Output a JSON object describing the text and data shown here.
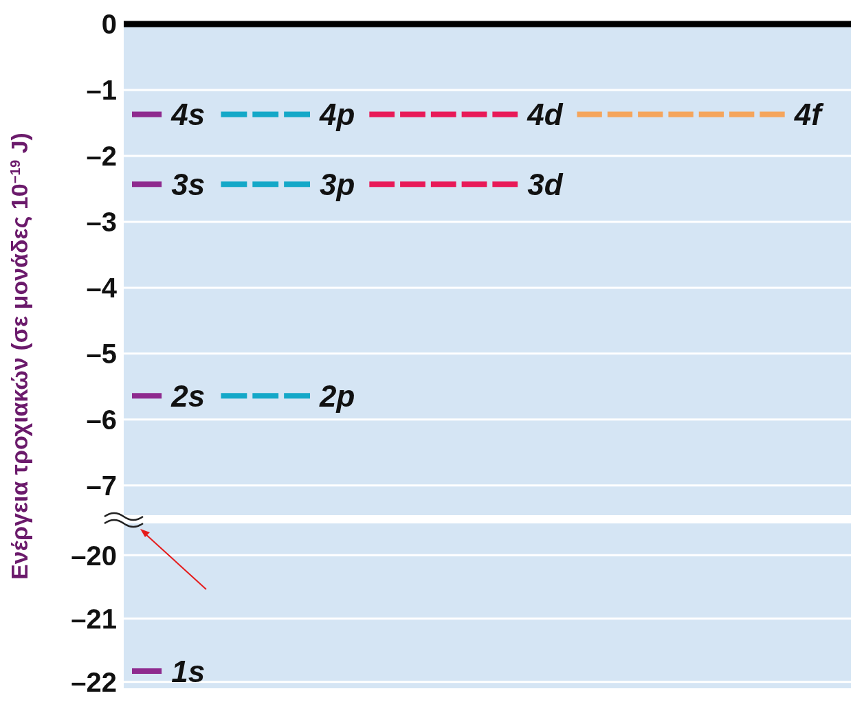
{
  "chart_data": [
    {
      "type": "line",
      "ylabel": "Ενέργεια τροχιακών (σε μονάδες 10$^{−19}$ J)",
      "categories": [
        null,
        null,
        null,
        null,
        null,
        null,
        null,
        null,
        null,
        null,
        null,
        null,
        null,
        null,
        null,
        null,
        null,
        null,
        null,
        null,
        null,
        null,
        null,
        null,
        null
      ],
      "ylim": [
        -7.45,
        0
      ],
      "yticks": [
        0,
        {
          "value": -1,
          "label": "–1"
        },
        {
          "value": -2,
          "label": "–2"
        },
        {
          "value": -3,
          "label": "–3"
        },
        {
          "value": -4,
          "label": "–4"
        },
        {
          "value": -5,
          "label": "–5"
        },
        {
          "value": -6,
          "label": "–6"
        },
        {
          "value": -7,
          "label": "–7"
        }
      ],
      "grid": "y",
      "tick_labels": "y",
      "line_style": "dashed",
      "ref_lines": [
        {
          "axis": "y",
          "value": 0,
          "color": "#000000"
        }
      ],
      "series": [
        {
          "name": "4s",
          "color": "#8e2a8e",
          "values": [
            -1.37,
            -1.37,
            null,
            null,
            null,
            null,
            null,
            null,
            null,
            null,
            null,
            null,
            null,
            null,
            null,
            null,
            null,
            null,
            null,
            null,
            null,
            null,
            null,
            null,
            null
          ]
        },
        {
          "name": "4p",
          "color": "#14a8c8",
          "values": [
            null,
            null,
            null,
            -1.37,
            -1.37,
            -1.37,
            -1.37,
            null,
            null,
            null,
            null,
            null,
            null,
            null,
            null,
            null,
            null,
            null,
            null,
            null,
            null,
            null,
            null,
            null,
            null
          ]
        },
        {
          "name": "4d",
          "color": "#e81a58",
          "values": [
            null,
            null,
            null,
            null,
            null,
            null,
            null,
            null,
            -1.37,
            -1.37,
            -1.37,
            -1.37,
            -1.37,
            -1.37,
            null,
            null,
            null,
            null,
            null,
            null,
            null,
            null,
            null,
            null,
            null
          ]
        },
        {
          "name": "4f",
          "color": "#f5a55c",
          "values": [
            null,
            null,
            null,
            null,
            null,
            null,
            null,
            null,
            null,
            null,
            null,
            null,
            null,
            null,
            null,
            -1.37,
            -1.37,
            -1.37,
            -1.37,
            -1.37,
            -1.37,
            -1.37,
            -1.37,
            null,
            null
          ]
        },
        {
          "name": "3s",
          "color": "#8e2a8e",
          "values": [
            -2.43,
            -2.43,
            null,
            null,
            null,
            null,
            null,
            null,
            null,
            null,
            null,
            null,
            null,
            null,
            null,
            null,
            null,
            null,
            null,
            null,
            null,
            null,
            null,
            null,
            null
          ]
        },
        {
          "name": "3p",
          "color": "#14a8c8",
          "values": [
            null,
            null,
            null,
            -2.43,
            -2.43,
            -2.43,
            -2.43,
            null,
            null,
            null,
            null,
            null,
            null,
            null,
            null,
            null,
            null,
            null,
            null,
            null,
            null,
            null,
            null,
            null,
            null
          ]
        },
        {
          "name": "3d",
          "color": "#e81a58",
          "values": [
            null,
            null,
            null,
            null,
            null,
            null,
            null,
            null,
            -2.43,
            -2.43,
            -2.43,
            -2.43,
            -2.43,
            -2.43,
            null,
            null,
            null,
            null,
            null,
            null,
            null,
            null,
            null,
            null,
            null
          ]
        },
        {
          "name": "2s",
          "color": "#8e2a8e",
          "values": [
            -5.64,
            -5.64,
            null,
            null,
            null,
            null,
            null,
            null,
            null,
            null,
            null,
            null,
            null,
            null,
            null,
            null,
            null,
            null,
            null,
            null,
            null,
            null,
            null,
            null,
            null
          ]
        },
        {
          "name": "2p",
          "color": "#14a8c8",
          "values": [
            null,
            null,
            null,
            -5.64,
            -5.64,
            -5.64,
            -5.64,
            null,
            null,
            null,
            null,
            null,
            null,
            null,
            null,
            null,
            null,
            null,
            null,
            null,
            null,
            null,
            null,
            null,
            null
          ]
        }
      ]
    },
    {
      "type": "line",
      "categories": [
        null,
        null,
        null,
        null,
        null,
        null,
        null,
        null,
        null,
        null,
        null,
        null,
        null,
        null,
        null,
        null,
        null,
        null,
        null,
        null,
        null,
        null,
        null,
        null,
        null
      ],
      "ylim": [
        -22.1,
        -19.5
      ],
      "yticks": [
        {
          "value": -20,
          "label": "–20"
        },
        {
          "value": -21,
          "label": "–21"
        },
        {
          "value": -22,
          "label": "–22"
        }
      ],
      "grid": "y",
      "tick_labels": "y",
      "line_style": "dashed",
      "series": [
        {
          "name": "1s",
          "color": "#8e2a8e",
          "values": [
            -21.83,
            -21.83,
            null,
            null,
            null,
            null,
            null,
            null,
            null,
            null,
            null,
            null,
            null,
            null,
            null,
            null,
            null,
            null,
            null,
            null,
            null,
            null,
            null,
            null,
            null
          ]
        }
      ]
    }
  ]
}
